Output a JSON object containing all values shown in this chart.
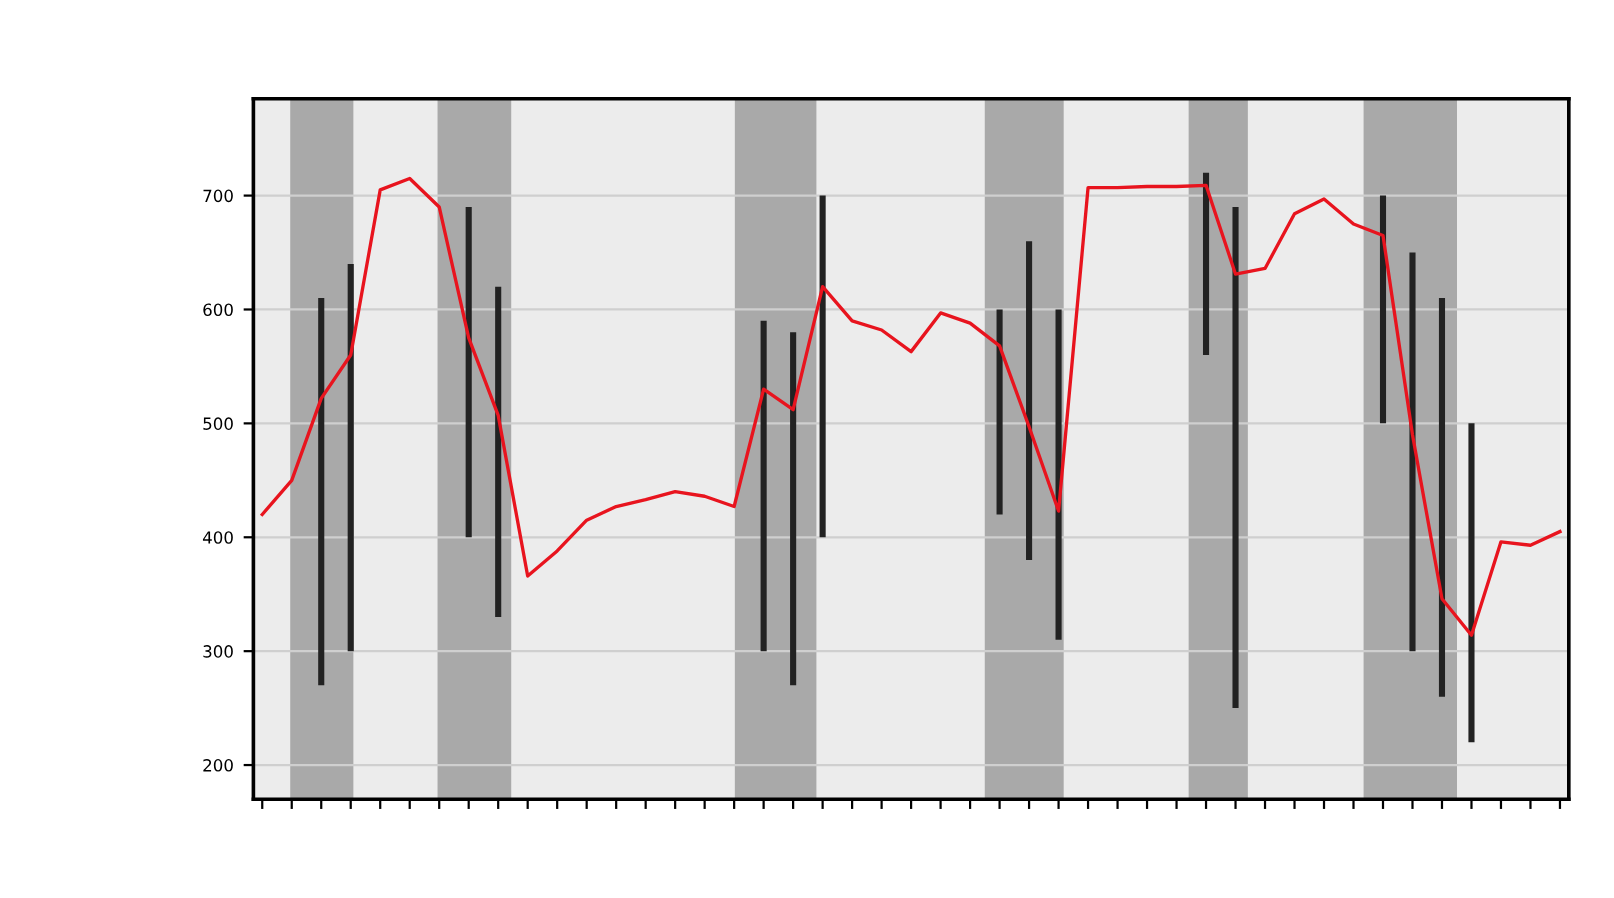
{
  "chart_data": {
    "type": "line",
    "categories": [
      null,
      null,
      null,
      null,
      null,
      null,
      null,
      null,
      null,
      null,
      null,
      null,
      null,
      null,
      null,
      null,
      null,
      null,
      null,
      null,
      null,
      null,
      null,
      null,
      null,
      null,
      null,
      null,
      null,
      null,
      null,
      null,
      null,
      null,
      null,
      null,
      null,
      null,
      null,
      null,
      null,
      null,
      null,
      null,
      null
    ],
    "series": [
      {
        "color": "#e8141e",
        "values": [
          420,
          450,
          522,
          560,
          705,
          715,
          690,
          575,
          507,
          366,
          388,
          415,
          427,
          433,
          440,
          436,
          427,
          530,
          512,
          620,
          590,
          582,
          563,
          597,
          588,
          568,
          497,
          423,
          707,
          707,
          708,
          708,
          709,
          631,
          636,
          684,
          697,
          675,
          665,
          490,
          346,
          314,
          396,
          393,
          405
        ],
        "errors": [
          null,
          null,
          [
            270,
            610
          ],
          [
            300,
            640
          ],
          null,
          null,
          null,
          [
            400,
            690
          ],
          [
            330,
            620
          ],
          null,
          null,
          null,
          null,
          null,
          null,
          null,
          null,
          [
            300,
            590
          ],
          [
            270,
            580
          ],
          [
            400,
            700
          ],
          null,
          null,
          null,
          null,
          null,
          [
            420,
            600
          ],
          [
            380,
            660
          ],
          [
            310,
            600
          ],
          null,
          null,
          null,
          null,
          [
            560,
            720
          ],
          [
            250,
            690
          ],
          null,
          null,
          null,
          null,
          [
            500,
            700
          ],
          [
            300,
            650
          ],
          [
            260,
            610
          ],
          [
            220,
            500
          ],
          null,
          null,
          null
        ]
      }
    ],
    "ylim": [
      170,
      785
    ],
    "yticks": [
      200,
      300,
      400,
      500,
      600,
      700
    ],
    "grid": "y",
    "marker": "none",
    "line_style": "solid"
  }
}
